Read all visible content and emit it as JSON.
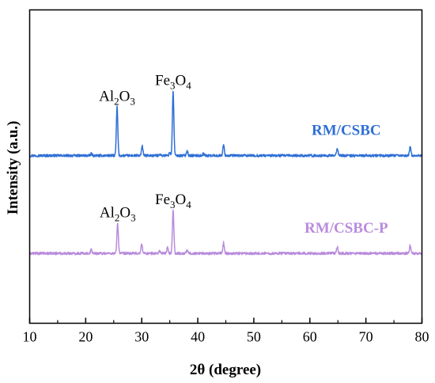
{
  "chart_data": {
    "type": "line",
    "xlabel": "2θ (degree)",
    "ylabel": "Intensity (a.u.)",
    "xlim": [
      10,
      80
    ],
    "xticks": [
      "10",
      "20",
      "30",
      "40",
      "50",
      "60",
      "70",
      "80"
    ],
    "yticks_visible": false,
    "grid": false,
    "series": [
      {
        "name": "RM/CSBC",
        "color": "#2f6fd6",
        "baseline_level": 0.535,
        "noise": 0.004,
        "peaks": [
          {
            "x": 21.0,
            "height": 0.006
          },
          {
            "x": 25.6,
            "height": 0.155
          },
          {
            "x": 30.1,
            "height": 0.03
          },
          {
            "x": 33.2,
            "height": 0.006
          },
          {
            "x": 35.0,
            "height": 0.01
          },
          {
            "x": 35.6,
            "height": 0.205
          },
          {
            "x": 38.1,
            "height": 0.016
          },
          {
            "x": 41.0,
            "height": 0.006
          },
          {
            "x": 44.6,
            "height": 0.034
          },
          {
            "x": 64.9,
            "height": 0.024
          },
          {
            "x": 77.9,
            "height": 0.028
          }
        ]
      },
      {
        "name": "RM/CSBC-P",
        "color": "#b98bdc",
        "baseline_level": 0.223,
        "noise": 0.004,
        "peaks": [
          {
            "x": 21.0,
            "height": 0.012
          },
          {
            "x": 25.7,
            "height": 0.095
          },
          {
            "x": 30.0,
            "height": 0.03
          },
          {
            "x": 33.2,
            "height": 0.008
          },
          {
            "x": 34.6,
            "height": 0.018
          },
          {
            "x": 35.6,
            "height": 0.137
          },
          {
            "x": 38.1,
            "height": 0.01
          },
          {
            "x": 44.6,
            "height": 0.034
          },
          {
            "x": 64.9,
            "height": 0.02
          },
          {
            "x": 77.9,
            "height": 0.026
          }
        ]
      }
    ],
    "annotations": [
      {
        "series": 0,
        "base": "Al",
        "s1": "2",
        "mid": "O",
        "s2": "3",
        "x": 25.6
      },
      {
        "series": 0,
        "base": "Fe",
        "s1": "3",
        "mid": "O",
        "s2": "4",
        "x": 35.6
      },
      {
        "series": 1,
        "base": "Al",
        "s1": "2",
        "mid": "O",
        "s2": "3",
        "x": 25.7
      },
      {
        "series": 1,
        "base": "Fe",
        "s1": "3",
        "mid": "O",
        "s2": "4",
        "x": 35.6
      }
    ]
  }
}
